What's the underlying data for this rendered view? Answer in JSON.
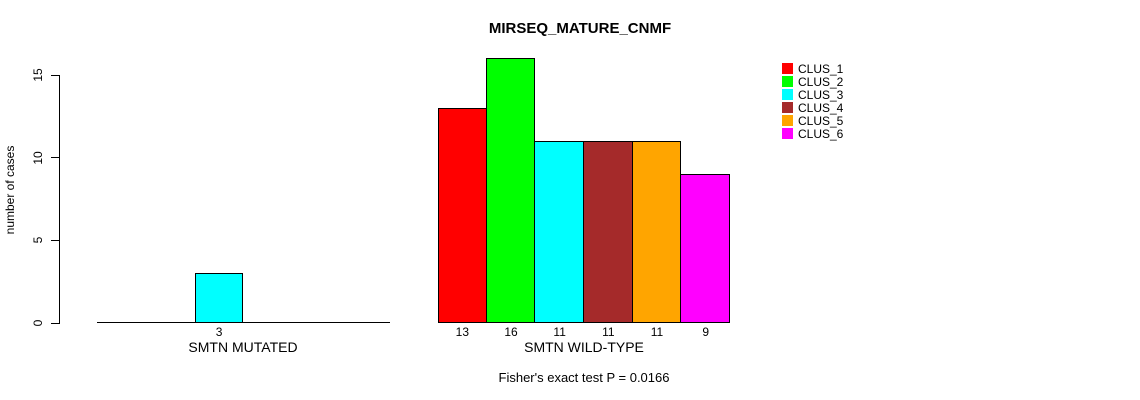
{
  "chart_data": {
    "type": "bar",
    "title": "MIRSEQ_MATURE_CNMF",
    "ylabel": "number of cases",
    "xlabel": "",
    "ylim": [
      0,
      16
    ],
    "yticks": [
      0,
      5,
      10,
      15
    ],
    "grid": false,
    "legend_position": "top-right",
    "background": "#ffffff",
    "axis_color": "#000000",
    "groups": [
      {
        "label": "SMTN MUTATED"
      },
      {
        "label": "SMTN WILD-TYPE"
      }
    ],
    "series": [
      {
        "name": "CLUS_1",
        "color": "#ff0000",
        "values": [
          0,
          13
        ]
      },
      {
        "name": "CLUS_2",
        "color": "#00ff00",
        "values": [
          0,
          16
        ]
      },
      {
        "name": "CLUS_3",
        "color": "#00ffff",
        "values": [
          3,
          11
        ]
      },
      {
        "name": "CLUS_4",
        "color": "#a52a2a",
        "values": [
          0,
          11
        ]
      },
      {
        "name": "CLUS_5",
        "color": "#ffa500",
        "values": [
          0,
          11
        ]
      },
      {
        "name": "CLUS_6",
        "color": "#ff00ff",
        "values": [
          0,
          9
        ]
      }
    ],
    "bar_value_labels": {
      "group_0": [
        "3"
      ],
      "group_1": [
        "13",
        "16",
        "11",
        "11",
        "11",
        "9"
      ]
    },
    "annotation": "Fisher's exact test P = 0.0166"
  }
}
